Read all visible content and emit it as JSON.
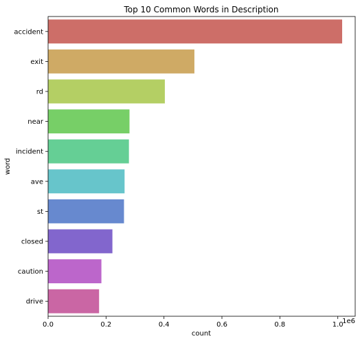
{
  "chart_data": {
    "type": "bar",
    "orientation": "horizontal",
    "title": "Top 10 Common Words in Description",
    "xlabel": "count",
    "ylabel": "word",
    "x_offset_label": "1e6",
    "xlim": [
      0,
      1.06
    ],
    "x_ticks": [
      0,
      0.2,
      0.4,
      0.6,
      0.8,
      1.0
    ],
    "x_tick_labels": [
      "0.0",
      "0.2",
      "0.4",
      "0.6",
      "0.8",
      "1.0"
    ],
    "grid": false,
    "categories": [
      "accident",
      "exit",
      "rd",
      "near",
      "incident",
      "ave",
      "st",
      "closed",
      "caution",
      "drive"
    ],
    "values": [
      1.015,
      0.505,
      0.403,
      0.281,
      0.279,
      0.264,
      0.262,
      0.222,
      0.184,
      0.176
    ],
    "colors": [
      "#cd6e68",
      "#cfaa65",
      "#b4cf64",
      "#77cf67",
      "#65cf95",
      "#67c5cb",
      "#6789cf",
      "#8266cd",
      "#bc66cb",
      "#ca66a4"
    ]
  }
}
